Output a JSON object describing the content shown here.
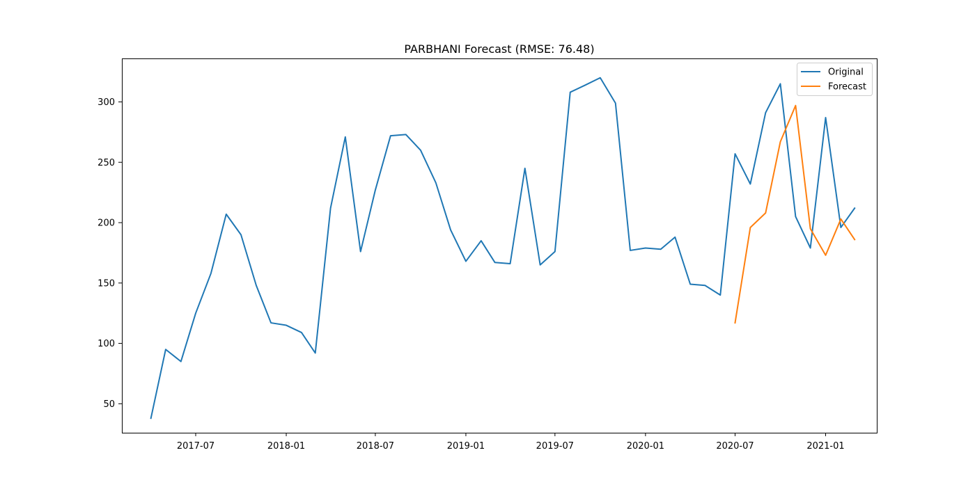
{
  "chart_data": {
    "type": "line",
    "title": "PARBHANI Forecast (RMSE: 76.48)",
    "xlabel": "",
    "ylabel": "",
    "x_axis": {
      "type": "date",
      "range": [
        "2017-02-01",
        "2021-04-15"
      ],
      "ticks": [
        {
          "date": "2017-07-01",
          "label": "2017-07"
        },
        {
          "date": "2018-01-01",
          "label": "2018-01"
        },
        {
          "date": "2018-07-01",
          "label": "2018-07"
        },
        {
          "date": "2019-01-01",
          "label": "2019-01"
        },
        {
          "date": "2019-07-01",
          "label": "2019-07"
        },
        {
          "date": "2020-01-01",
          "label": "2020-01"
        },
        {
          "date": "2020-07-01",
          "label": "2020-07"
        },
        {
          "date": "2021-01-01",
          "label": "2021-01"
        }
      ]
    },
    "y_axis": {
      "range": [
        26,
        336
      ],
      "ticks": [
        50,
        100,
        150,
        200,
        250,
        300
      ]
    },
    "grid": false,
    "legend": {
      "position": "top-right",
      "entries": [
        "Original",
        "Forecast"
      ]
    },
    "series": [
      {
        "name": "Original",
        "color": "#1f77b4",
        "x": [
          "2017-04-01",
          "2017-05-01",
          "2017-06-01",
          "2017-07-01",
          "2017-08-01",
          "2017-09-01",
          "2017-10-01",
          "2017-11-01",
          "2017-12-01",
          "2018-01-01",
          "2018-02-01",
          "2018-03-01",
          "2018-04-01",
          "2018-05-01",
          "2018-06-01",
          "2018-07-01",
          "2018-08-01",
          "2018-09-01",
          "2018-10-01",
          "2018-11-01",
          "2018-12-01",
          "2019-01-01",
          "2019-02-01",
          "2019-03-01",
          "2019-04-01",
          "2019-05-01",
          "2019-06-01",
          "2019-07-01",
          "2019-08-01",
          "2019-09-01",
          "2019-10-01",
          "2019-11-01",
          "2019-12-01",
          "2020-01-01",
          "2020-02-01",
          "2020-03-01",
          "2020-04-01",
          "2020-05-01",
          "2020-06-01",
          "2020-07-01",
          "2020-08-01",
          "2020-09-01",
          "2020-10-01",
          "2020-11-01",
          "2020-12-01",
          "2021-01-01",
          "2021-02-01",
          "2021-03-01"
        ],
        "values": [
          38,
          95,
          85,
          125,
          158,
          207,
          190,
          148,
          117,
          115,
          109,
          92,
          212,
          271,
          176,
          227,
          272,
          273,
          260,
          233,
          194,
          168,
          185,
          167,
          166,
          245,
          165,
          176,
          308,
          314,
          320,
          299,
          177,
          179,
          178,
          188,
          149,
          148,
          140,
          257,
          232,
          291,
          315,
          205,
          179,
          287,
          196,
          212
        ]
      },
      {
        "name": "Forecast",
        "color": "#ff7f0e",
        "x": [
          "2020-07-01",
          "2020-08-01",
          "2020-09-01",
          "2020-10-01",
          "2020-11-01",
          "2020-12-01",
          "2021-01-01",
          "2021-02-01",
          "2021-03-01"
        ],
        "values": [
          117,
          196,
          208,
          267,
          297,
          195,
          173,
          203,
          186
        ]
      }
    ]
  }
}
